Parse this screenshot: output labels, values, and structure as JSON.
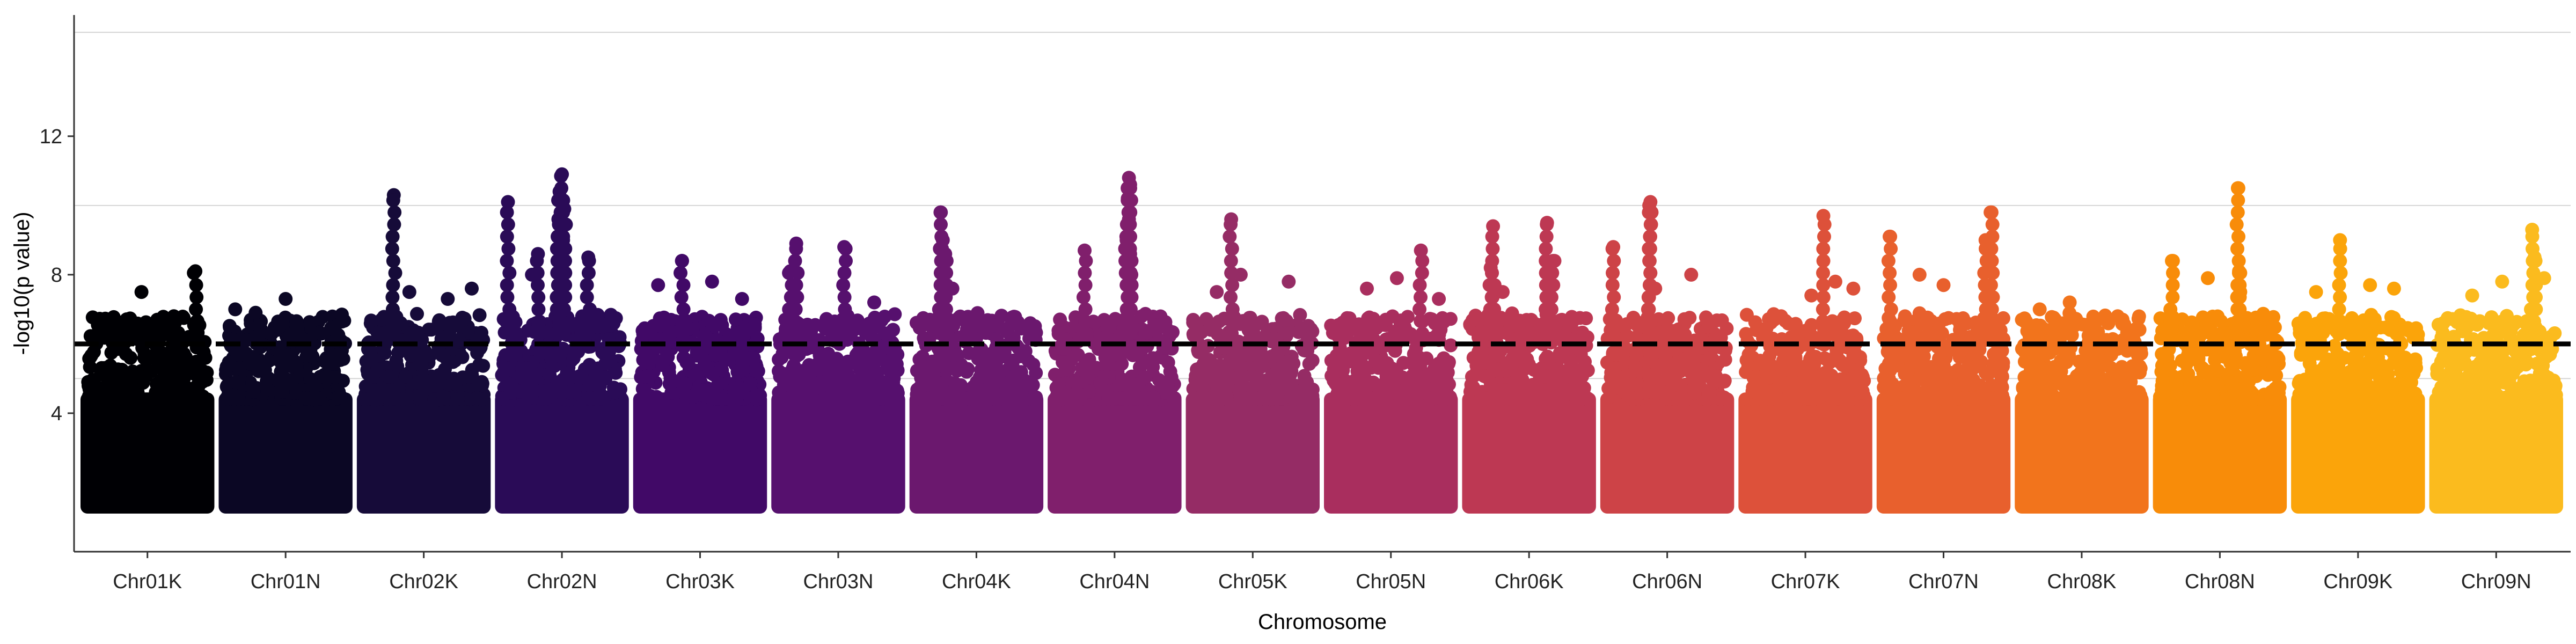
{
  "chart_data": {
    "type": "scatter",
    "subtype": "manhattan",
    "xlabel": "Chromosome",
    "ylabel": "-log10(p value)",
    "ylim": [
      0,
      15.5
    ],
    "yticks": [
      4,
      8,
      12
    ],
    "gridlines_y": [
      5,
      10,
      15
    ],
    "threshold": 6.0,
    "grid": "horizontal-major",
    "legend": "none",
    "categories": [
      "Chr01K",
      "Chr01N",
      "Chr02K",
      "Chr02N",
      "Chr03K",
      "Chr03N",
      "Chr04K",
      "Chr04N",
      "Chr05K",
      "Chr05N",
      "Chr06K",
      "Chr06N",
      "Chr07K",
      "Chr07N",
      "Chr08K",
      "Chr08N",
      "Chr09K",
      "Chr09N"
    ],
    "colors": [
      "#000004",
      "#0b0724",
      "#160b39",
      "#2a0b57",
      "#410967",
      "#56106e",
      "#6b186e",
      "#801f6c",
      "#952c65",
      "#a92e5e",
      "#bd3853",
      "#cd4347",
      "#dd513a",
      "#e8602d",
      "#f2741c",
      "#f88c09",
      "#fba40a",
      "#fbbb1e"
    ],
    "series": [
      {
        "name": "Chr01K",
        "peaks": [
          [
            0.9,
            8.1
          ],
          [
            0.45,
            7.5
          ],
          [
            0.2,
            6.7
          ],
          [
            0.6,
            6.6
          ],
          [
            0.72,
            6.8
          ]
        ]
      },
      {
        "name": "Chr01N",
        "peaks": [
          [
            0.5,
            7.3
          ],
          [
            0.08,
            7.0
          ],
          [
            0.25,
            6.9
          ],
          [
            0.8,
            6.3
          ]
        ]
      },
      {
        "name": "Chr02K",
        "peaks": [
          [
            0.25,
            10.3
          ],
          [
            0.9,
            7.6
          ],
          [
            0.38,
            7.5
          ],
          [
            0.7,
            7.3
          ]
        ]
      },
      {
        "name": "Chr02N",
        "peaks": [
          [
            0.05,
            10.1
          ],
          [
            0.5,
            10.9
          ],
          [
            0.48,
            10.4
          ],
          [
            0.52,
            9.9
          ],
          [
            0.47,
            9.6
          ],
          [
            0.51,
            9.0
          ],
          [
            0.3,
            8.6
          ],
          [
            0.72,
            8.5
          ],
          [
            0.25,
            8.0
          ]
        ]
      },
      {
        "name": "Chr03K",
        "peaks": [
          [
            0.35,
            8.4
          ],
          [
            0.15,
            7.7
          ],
          [
            0.6,
            7.8
          ],
          [
            0.85,
            7.3
          ]
        ]
      },
      {
        "name": "Chr03N",
        "peaks": [
          [
            0.15,
            8.9
          ],
          [
            0.55,
            8.8
          ],
          [
            0.1,
            8.1
          ],
          [
            0.8,
            7.2
          ]
        ]
      },
      {
        "name": "Chr04K",
        "peaks": [
          [
            0.2,
            9.8
          ],
          [
            0.22,
            9.0
          ],
          [
            0.24,
            8.6
          ],
          [
            0.3,
            7.6
          ]
        ]
      },
      {
        "name": "Chr04N",
        "peaks": [
          [
            0.62,
            10.8
          ],
          [
            0.63,
            10.6
          ],
          [
            0.61,
            10.2
          ],
          [
            0.62,
            9.6
          ],
          [
            0.6,
            9.0
          ],
          [
            0.63,
            8.6
          ],
          [
            0.25,
            8.7
          ],
          [
            0.64,
            8.0
          ]
        ]
      },
      {
        "name": "Chr05K",
        "peaks": [
          [
            0.32,
            9.6
          ],
          [
            0.4,
            8.0
          ],
          [
            0.8,
            7.8
          ],
          [
            0.2,
            7.5
          ]
        ]
      },
      {
        "name": "Chr05N",
        "peaks": [
          [
            0.75,
            8.7
          ],
          [
            0.55,
            7.9
          ],
          [
            0.3,
            7.6
          ],
          [
            0.9,
            7.3
          ]
        ]
      },
      {
        "name": "Chr06K",
        "peaks": [
          [
            0.2,
            9.4
          ],
          [
            0.65,
            9.5
          ],
          [
            0.18,
            8.2
          ],
          [
            0.7,
            8.4
          ],
          [
            0.28,
            7.5
          ]
        ]
      },
      {
        "name": "Chr06N",
        "peaks": [
          [
            0.35,
            10.0
          ],
          [
            0.36,
            10.1
          ],
          [
            0.05,
            8.8
          ],
          [
            0.7,
            8.0
          ],
          [
            0.4,
            7.6
          ]
        ]
      },
      {
        "name": "Chr07K",
        "peaks": [
          [
            0.65,
            9.7
          ],
          [
            0.75,
            7.8
          ],
          [
            0.55,
            7.4
          ],
          [
            0.9,
            7.6
          ]
        ]
      },
      {
        "name": "Chr07N",
        "peaks": [
          [
            0.9,
            9.8
          ],
          [
            0.05,
            9.1
          ],
          [
            0.85,
            9.0
          ],
          [
            0.3,
            8.0
          ],
          [
            0.5,
            7.7
          ]
        ]
      },
      {
        "name": "Chr08K",
        "peaks": [
          [
            0.4,
            7.2
          ],
          [
            0.15,
            7.0
          ],
          [
            0.8,
            6.8
          ]
        ]
      },
      {
        "name": "Chr08N",
        "peaks": [
          [
            0.65,
            10.5
          ],
          [
            0.1,
            8.4
          ],
          [
            0.66,
            8.1
          ],
          [
            0.4,
            7.9
          ],
          [
            0.67,
            7.5
          ]
        ]
      },
      {
        "name": "Chr09K",
        "peaks": [
          [
            0.35,
            9.0
          ],
          [
            0.6,
            7.7
          ],
          [
            0.8,
            7.6
          ],
          [
            0.15,
            7.5
          ]
        ]
      },
      {
        "name": "Chr09N",
        "peaks": [
          [
            0.8,
            9.3
          ],
          [
            0.82,
            8.5
          ],
          [
            0.55,
            7.8
          ],
          [
            0.3,
            7.4
          ],
          [
            0.9,
            7.9
          ]
        ]
      }
    ]
  }
}
